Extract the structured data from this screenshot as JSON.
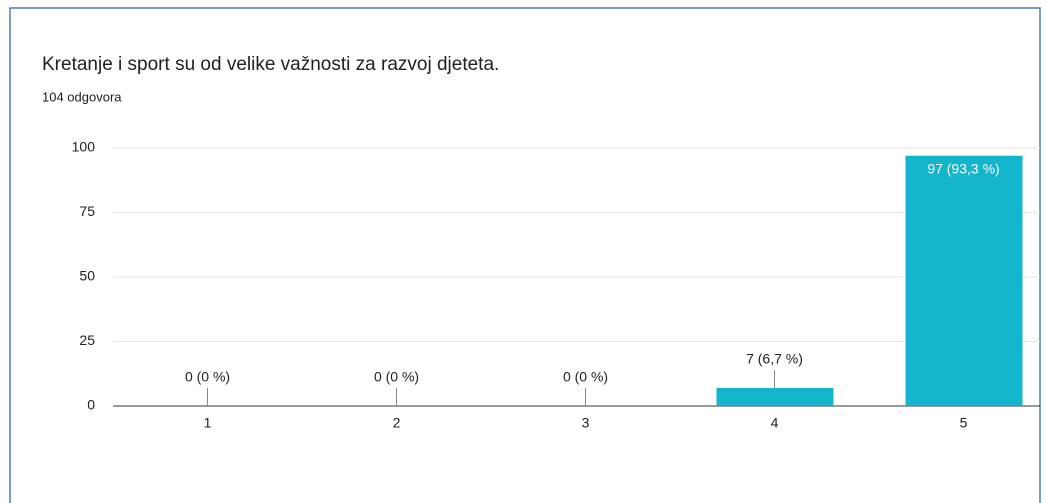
{
  "chart_data": {
    "type": "bar",
    "title": "Kretanje i sport su od velike važnosti za razvoj djeteta.",
    "subtitle": "104 odgovora",
    "categories": [
      "1",
      "2",
      "3",
      "4",
      "5"
    ],
    "values": [
      0,
      0,
      0,
      7,
      97
    ],
    "value_labels": [
      "0 (0 %)",
      "0 (0 %)",
      "0 (0 %)",
      "7 (6,7 %)",
      "97 (93,3 %)"
    ],
    "color": "#12b5cb",
    "ylim": [
      0,
      100
    ],
    "yticks": [
      0,
      25,
      50,
      75,
      100
    ],
    "grid": true
  }
}
